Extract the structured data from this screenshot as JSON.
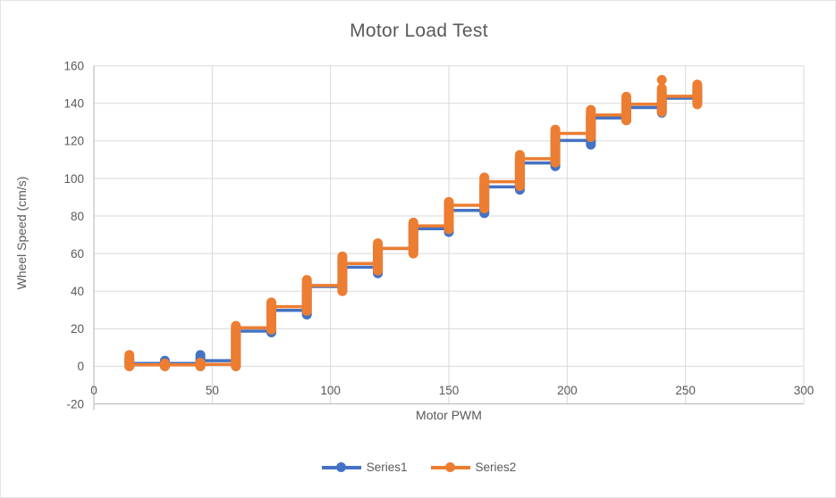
{
  "title": "Motor Load Test",
  "colors": {
    "series1_blue": "#4472C4",
    "series2_orange": "#ED7D31",
    "text_gray": "#595959",
    "gridline_gray": "#D9D9D9",
    "axis_gray": "#BFBFBF"
  },
  "legend": {
    "entries": [
      "Series1",
      "Series2"
    ]
  },
  "chart_data": {
    "type": "line",
    "title": "Motor Load Test",
    "xlabel": "Motor PWM",
    "ylabel": "Wheel Speed (cm/s)",
    "xlim": [
      0,
      300
    ],
    "ylim": [
      -20,
      160
    ],
    "xticks": [
      0,
      50,
      100,
      150,
      200,
      250,
      300
    ],
    "yticks": [
      -20,
      0,
      20,
      40,
      60,
      80,
      100,
      120,
      140,
      160
    ],
    "grid": true,
    "legend_position": "bottom-center",
    "description": "Repeated wheel-speed measurements at each PWM step form vertical clusters; strips list [pwm, min_speed, max_speed] of each cluster in cm/s.",
    "series": [
      {
        "name": "Series1",
        "color": "#4472C4",
        "strips": [
          [
            15,
            0,
            4
          ],
          [
            30,
            0,
            3
          ],
          [
            45,
            0,
            6
          ],
          [
            60,
            0,
            19.5
          ],
          [
            75,
            18,
            32
          ],
          [
            90,
            27.5,
            44
          ],
          [
            105,
            41,
            56
          ],
          [
            120,
            49.5,
            63.5
          ],
          [
            135,
            62,
            75
          ],
          [
            150,
            71.5,
            84.5
          ],
          [
            165,
            81.5,
            97
          ],
          [
            180,
            94,
            110
          ],
          [
            195,
            106.5,
            122.5
          ],
          [
            210,
            118,
            133.5
          ],
          [
            225,
            131,
            140.5
          ],
          [
            240,
            135,
            144.5
          ],
          [
            255,
            141,
            147
          ]
        ],
        "outliers": []
      },
      {
        "name": "Series2",
        "color": "#ED7D31",
        "strips": [
          [
            15,
            0,
            6
          ],
          [
            30,
            0,
            1.5
          ],
          [
            45,
            0,
            2
          ],
          [
            60,
            0,
            21.5
          ],
          [
            75,
            19.5,
            34
          ],
          [
            90,
            29.5,
            46
          ],
          [
            105,
            40,
            58.5
          ],
          [
            120,
            51,
            65.5
          ],
          [
            135,
            60,
            76.5
          ],
          [
            150,
            73,
            87.5
          ],
          [
            165,
            84,
            100.5
          ],
          [
            180,
            96,
            112.5
          ],
          [
            195,
            108.5,
            126
          ],
          [
            210,
            122,
            136.5
          ],
          [
            225,
            131,
            143.5
          ],
          [
            240,
            135.5,
            148
          ],
          [
            255,
            139.5,
            150
          ]
        ],
        "outliers": [
          [
            240,
            152.5
          ]
        ]
      }
    ]
  }
}
